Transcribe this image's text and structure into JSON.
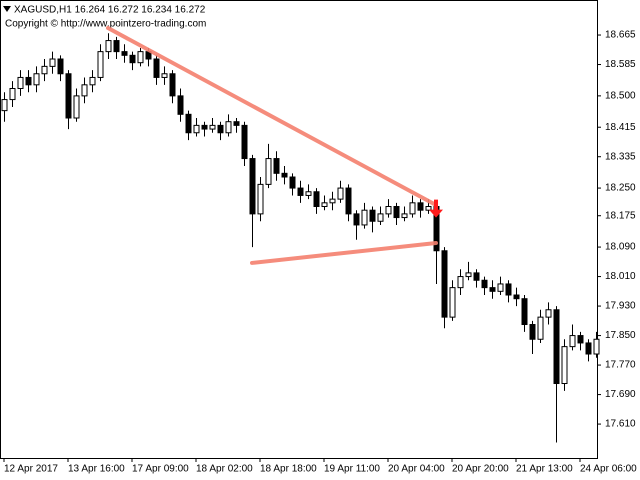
{
  "chart_data": {
    "type": "candlestick",
    "title": "XAGUSD,H1  16.264 16.272 16.234 16.272",
    "subtitle": "Copyright © http://www.pointzero-trading.com",
    "up_color": "#ffffff",
    "down_color": "#000000",
    "ylim": [
      17.518,
      18.76
    ],
    "yticks": [
      18.665,
      18.585,
      {
        "value": 18.5,
        "label": "18.500"
      },
      18.415,
      18.335,
      {
        "value": 18.25,
        "label": "18.250"
      },
      18.175,
      {
        "value": 18.09,
        "label": "18.090"
      },
      {
        "value": 18.01,
        "label": "18.010"
      },
      {
        "value": 17.93,
        "label": "17.930"
      },
      {
        "value": 17.85,
        "label": "17.850"
      },
      {
        "value": 17.77,
        "label": "17.770"
      },
      {
        "value": 17.69,
        "label": "17.690"
      },
      {
        "value": 17.61,
        "label": "17.610"
      }
    ],
    "xticks": [
      {
        "value": 0,
        "label": "12 Apr 2017"
      },
      {
        "value": 8,
        "label": "13 Apr 16:00"
      },
      {
        "value": 16,
        "label": "17 Apr 09:00"
      },
      {
        "value": 24,
        "label": "18 Apr 02:00"
      },
      {
        "value": 32,
        "label": "18 Apr 18:00"
      },
      {
        "value": 40,
        "label": "19 Apr 11:00"
      },
      {
        "value": 48,
        "label": "20 Apr 04:00"
      },
      {
        "value": 56,
        "label": "20 Apr 20:00"
      },
      {
        "value": 64,
        "label": "21 Apr 13:00"
      },
      {
        "value": 72,
        "label": "24 Apr 06:00"
      }
    ],
    "ohlc": [
      [
        18.46,
        18.51,
        18.43,
        18.49
      ],
      [
        18.49,
        18.54,
        18.47,
        18.52
      ],
      [
        18.52,
        18.57,
        18.5,
        18.55
      ],
      [
        18.55,
        18.57,
        18.51,
        18.53
      ],
      [
        18.53,
        18.58,
        18.51,
        18.56
      ],
      [
        18.56,
        18.6,
        18.54,
        18.58
      ],
      [
        18.58,
        18.62,
        18.56,
        18.6
      ],
      [
        18.6,
        18.61,
        18.54,
        18.56
      ],
      [
        18.56,
        18.57,
        18.41,
        18.44
      ],
      [
        18.44,
        18.52,
        18.43,
        18.5
      ],
      [
        18.5,
        18.55,
        18.48,
        18.53
      ],
      [
        18.53,
        18.57,
        18.51,
        18.55
      ],
      [
        18.55,
        18.64,
        18.54,
        18.62
      ],
      [
        18.62,
        18.67,
        18.6,
        18.65
      ],
      [
        18.65,
        18.66,
        18.6,
        18.62
      ],
      [
        18.62,
        18.64,
        18.59,
        18.61
      ],
      [
        18.61,
        18.62,
        18.57,
        18.59
      ],
      [
        18.59,
        18.63,
        18.58,
        18.62
      ],
      [
        18.62,
        18.63,
        18.58,
        18.6
      ],
      [
        18.6,
        18.61,
        18.53,
        18.55
      ],
      [
        18.55,
        18.58,
        18.53,
        18.56
      ],
      [
        18.56,
        18.57,
        18.48,
        18.5
      ],
      [
        18.5,
        18.52,
        18.43,
        18.45
      ],
      [
        18.45,
        18.46,
        18.38,
        18.4
      ],
      [
        18.4,
        18.44,
        18.39,
        18.42
      ],
      [
        18.42,
        18.43,
        18.39,
        18.41
      ],
      [
        18.41,
        18.44,
        18.4,
        18.42
      ],
      [
        18.42,
        18.43,
        18.38,
        18.4
      ],
      [
        18.4,
        18.45,
        18.39,
        18.43
      ],
      [
        18.43,
        18.44,
        18.4,
        18.42
      ],
      [
        18.42,
        18.43,
        18.31,
        18.33
      ],
      [
        18.33,
        18.34,
        18.09,
        18.18
      ],
      [
        18.18,
        18.28,
        18.16,
        18.26
      ],
      [
        18.26,
        18.37,
        18.25,
        18.33
      ],
      [
        18.33,
        18.35,
        18.27,
        18.29
      ],
      [
        18.29,
        18.31,
        18.26,
        18.28
      ],
      [
        18.28,
        18.29,
        18.23,
        18.25
      ],
      [
        18.25,
        18.27,
        18.21,
        18.23
      ],
      [
        18.23,
        18.26,
        18.22,
        18.24
      ],
      [
        18.24,
        18.25,
        18.18,
        18.2
      ],
      [
        18.2,
        18.23,
        18.19,
        18.21
      ],
      [
        18.21,
        18.24,
        18.19,
        18.22
      ],
      [
        18.22,
        18.27,
        18.21,
        18.25
      ],
      [
        18.25,
        18.26,
        18.16,
        18.18
      ],
      [
        18.18,
        18.19,
        18.11,
        18.15
      ],
      [
        18.15,
        18.21,
        18.14,
        18.19
      ],
      [
        18.19,
        18.2,
        18.13,
        18.16
      ],
      [
        18.16,
        18.2,
        18.15,
        18.18
      ],
      [
        18.18,
        18.22,
        18.17,
        18.2
      ],
      [
        18.2,
        18.21,
        18.15,
        18.17
      ],
      [
        18.17,
        18.2,
        18.16,
        18.18
      ],
      [
        18.18,
        18.23,
        18.17,
        18.21
      ],
      [
        18.21,
        18.22,
        18.17,
        18.19
      ],
      [
        18.19,
        18.22,
        18.18,
        18.2
      ],
      [
        18.2,
        18.21,
        17.99,
        18.08
      ],
      [
        18.08,
        18.09,
        17.87,
        17.9
      ],
      [
        17.9,
        18.0,
        17.89,
        17.98
      ],
      [
        17.98,
        18.03,
        17.96,
        18.01
      ],
      [
        18.01,
        18.05,
        18.0,
        18.02
      ],
      [
        18.02,
        18.03,
        17.98,
        18.0
      ],
      [
        18.0,
        18.01,
        17.96,
        17.98
      ],
      [
        17.98,
        18.0,
        17.95,
        17.97
      ],
      [
        17.97,
        18.01,
        17.96,
        17.99
      ],
      [
        17.99,
        18.0,
        17.94,
        17.96
      ],
      [
        17.96,
        17.98,
        17.93,
        17.95
      ],
      [
        17.95,
        17.96,
        17.86,
        17.88
      ],
      [
        17.88,
        17.89,
        17.8,
        17.84
      ],
      [
        17.84,
        17.92,
        17.83,
        17.9
      ],
      [
        17.9,
        17.94,
        17.88,
        17.92
      ],
      [
        17.92,
        17.93,
        17.56,
        17.72
      ],
      [
        17.72,
        17.84,
        17.7,
        17.82
      ],
      [
        17.82,
        17.88,
        17.81,
        17.85
      ],
      [
        17.85,
        17.86,
        17.81,
        17.83
      ],
      [
        17.83,
        17.84,
        17.78,
        17.8
      ],
      [
        17.8,
        17.86,
        17.79,
        17.84
      ]
    ],
    "trendlines": [
      {
        "x": [
          13,
          54
        ],
        "y": [
          18.684,
          18.204
        ],
        "color": "#f4806e"
      },
      {
        "x": [
          31,
          54
        ],
        "y": [
          18.047,
          18.101
        ],
        "color": "#f4806e"
      }
    ],
    "arrow": {
      "x": 54,
      "y": 18.17,
      "color": "#ff1a1a"
    }
  }
}
